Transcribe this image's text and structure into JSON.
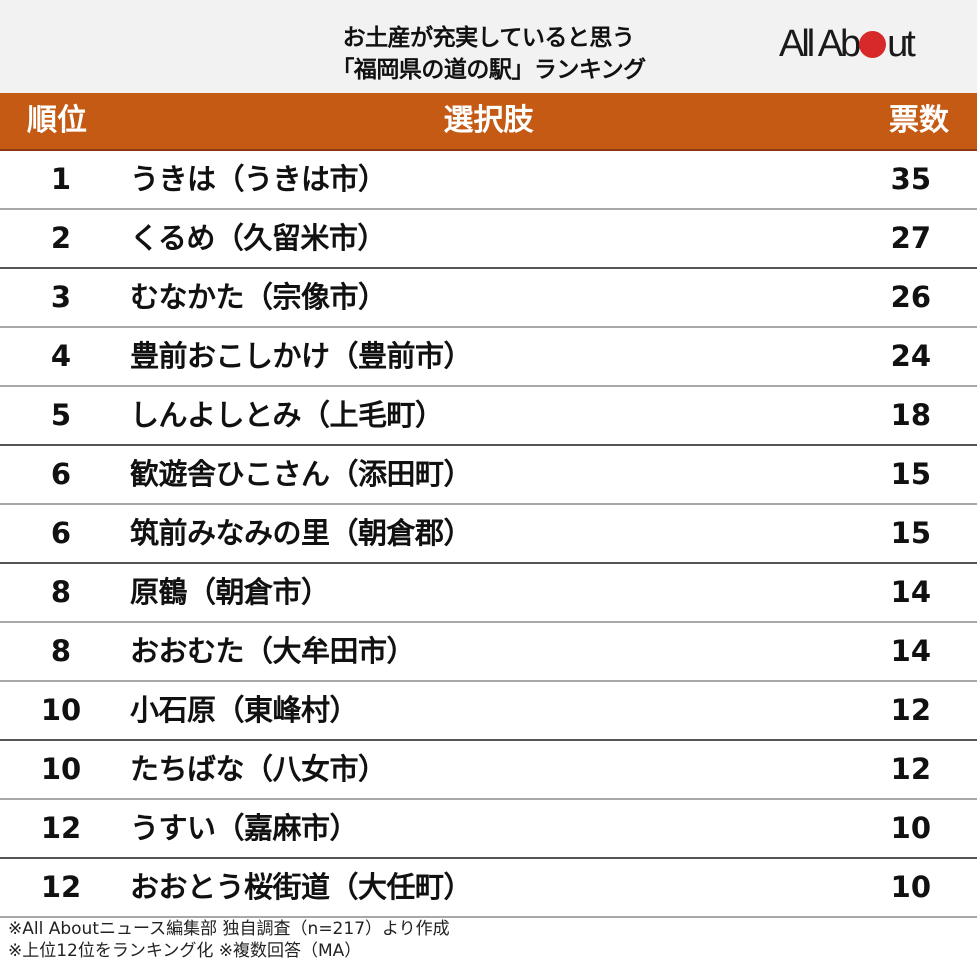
{
  "header": {
    "title_line1": "お土産が充実していると思う",
    "title_line2": "「福岡県の道の駅」ランキング",
    "logo": {
      "left": "All Ab",
      "right": "ut",
      "dot_color": "#d7282a"
    }
  },
  "table": {
    "columns": {
      "rank": "順位",
      "name": "選択肢",
      "votes": "票数"
    },
    "header_color": "#c45a14",
    "rows": [
      {
        "rank": "1",
        "name": "うきは（うきは市）",
        "votes": "35"
      },
      {
        "rank": "2",
        "name": "くるめ（久留米市）",
        "votes": "27"
      },
      {
        "rank": "3",
        "name": "むなかた（宗像市）",
        "votes": "26"
      },
      {
        "rank": "4",
        "name": "豊前おこしかけ（豊前市）",
        "votes": "24"
      },
      {
        "rank": "5",
        "name": "しんよしとみ（上毛町）",
        "votes": "18"
      },
      {
        "rank": "6",
        "name": "歓遊舎ひこさん（添田町）",
        "votes": "15"
      },
      {
        "rank": "6",
        "name": "筑前みなみの里（朝倉郡）",
        "votes": "15"
      },
      {
        "rank": "8",
        "name": "原鶴（朝倉市）",
        "votes": "14"
      },
      {
        "rank": "8",
        "name": "おおむた（大牟田市）",
        "votes": "14"
      },
      {
        "rank": "10",
        "name": "小石原（東峰村）",
        "votes": "12"
      },
      {
        "rank": "10",
        "name": "たちばな（八女市）",
        "votes": "12"
      },
      {
        "rank": "12",
        "name": "うすい（嘉麻市）",
        "votes": "10"
      },
      {
        "rank": "12",
        "name": "おおとう桜街道（大任町）",
        "votes": "10"
      }
    ]
  },
  "footer": {
    "line1": "※All Aboutニュース編集部 独自調査（n=217）より作成",
    "line2": "※上位12位をランキング化 ※複数回答（MA）"
  },
  "chart_data": {
    "type": "table",
    "title": "お土産が充実していると思う「福岡県の道の駅」ランキング",
    "columns": [
      "順位",
      "選択肢",
      "票数"
    ],
    "categories": [
      "うきは（うきは市）",
      "くるめ（久留米市）",
      "むなかた（宗像市）",
      "豊前おこしかけ（豊前市）",
      "しんよしとみ（上毛町）",
      "歓遊舎ひこさん（添田町）",
      "筑前みなみの里（朝倉郡）",
      "原鶴（朝倉市）",
      "おおむた（大牟田市）",
      "小石原（東峰村）",
      "たちばな（八女市）",
      "うすい（嘉麻市）",
      "おおとう桜街道（大任町）"
    ],
    "ranks": [
      1,
      2,
      3,
      4,
      5,
      6,
      6,
      8,
      8,
      10,
      10,
      12,
      12
    ],
    "values": [
      35,
      27,
      26,
      24,
      18,
      15,
      15,
      14,
      14,
      12,
      12,
      10,
      10
    ],
    "notes": [
      "※All Aboutニュース編集部 独自調査（n=217）より作成",
      "※上位12位をランキング化 ※複数回答（MA）"
    ]
  }
}
